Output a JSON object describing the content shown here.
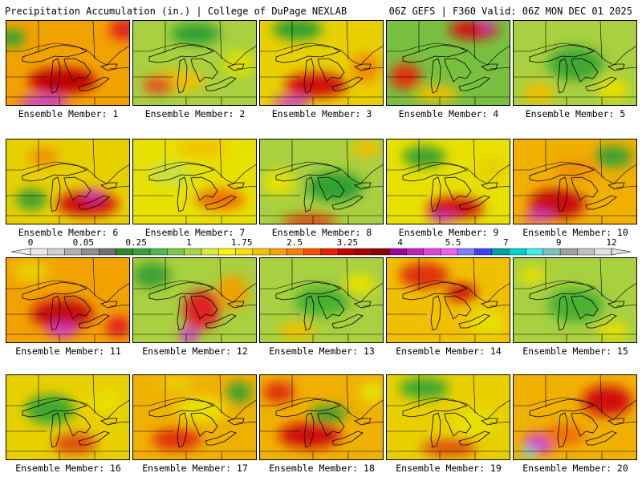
{
  "header": {
    "left": "Precipitation Accumulation (in.) | College of DuPage NEXLAB",
    "right": "06Z GEFS | F360 Valid: 06Z MON DEC 01 2025"
  },
  "caption_prefix": "Ensemble Member: ",
  "members": [
    {
      "id": "1",
      "base": "#f2a200",
      "blobs": [
        [
          0.45,
          0.7,
          0.55,
          0.3,
          "#c00000"
        ],
        [
          0.3,
          0.95,
          0.4,
          0.18,
          "#d040d0"
        ],
        [
          0.05,
          0.2,
          0.2,
          0.2,
          "#30a030"
        ],
        [
          0.95,
          0.1,
          0.25,
          0.25,
          "#e02020"
        ]
      ]
    },
    {
      "id": "2",
      "base": "#a8d040",
      "blobs": [
        [
          0.5,
          0.15,
          0.4,
          0.25,
          "#30a030"
        ],
        [
          0.35,
          0.7,
          0.45,
          0.25,
          "#f0c000"
        ],
        [
          0.2,
          0.75,
          0.25,
          0.2,
          "#e05020"
        ],
        [
          0.85,
          0.5,
          0.25,
          0.3,
          "#e0e000"
        ]
      ]
    },
    {
      "id": "3",
      "base": "#e8d000",
      "blobs": [
        [
          0.3,
          0.1,
          0.4,
          0.25,
          "#30a030"
        ],
        [
          0.45,
          0.75,
          0.5,
          0.28,
          "#d01010"
        ],
        [
          0.25,
          0.95,
          0.3,
          0.15,
          "#d040d0"
        ],
        [
          0.85,
          0.55,
          0.25,
          0.35,
          "#f09000"
        ]
      ]
    },
    {
      "id": "4",
      "base": "#7ac040",
      "blobs": [
        [
          0.7,
          0.1,
          0.4,
          0.22,
          "#d01010"
        ],
        [
          0.15,
          0.65,
          0.25,
          0.3,
          "#e03010"
        ],
        [
          0.4,
          0.85,
          0.35,
          0.2,
          "#f0c000"
        ],
        [
          0.8,
          0.05,
          0.1,
          0.12,
          "#d040d0"
        ]
      ]
    },
    {
      "id": "5",
      "base": "#a8d040",
      "blobs": [
        [
          0.5,
          0.5,
          0.45,
          0.4,
          "#40a830"
        ],
        [
          0.8,
          0.8,
          0.25,
          0.25,
          "#e8e000"
        ],
        [
          0.2,
          0.85,
          0.25,
          0.25,
          "#f0c000"
        ]
      ]
    },
    {
      "id": "6",
      "base": "#e8d000",
      "blobs": [
        [
          0.65,
          0.75,
          0.5,
          0.28,
          "#d01010"
        ],
        [
          0.7,
          0.65,
          0.15,
          0.15,
          "#c030c0"
        ],
        [
          0.2,
          0.7,
          0.25,
          0.25,
          "#40a030"
        ],
        [
          0.3,
          0.2,
          0.25,
          0.2,
          "#f09000"
        ]
      ]
    },
    {
      "id": "7",
      "base": "#e8e000",
      "blobs": [
        [
          0.7,
          0.7,
          0.4,
          0.25,
          "#f07000"
        ],
        [
          0.3,
          0.4,
          0.35,
          0.3,
          "#c8e040"
        ],
        [
          0.55,
          0.1,
          0.4,
          0.2,
          "#f0c000"
        ]
      ]
    },
    {
      "id": "8",
      "base": "#a8d040",
      "blobs": [
        [
          0.6,
          0.55,
          0.45,
          0.35,
          "#30a030"
        ],
        [
          0.4,
          0.95,
          0.45,
          0.15,
          "#e04010"
        ],
        [
          0.15,
          0.5,
          0.25,
          0.3,
          "#e8e000"
        ],
        [
          0.85,
          0.1,
          0.25,
          0.2,
          "#f0c000"
        ]
      ]
    },
    {
      "id": "9",
      "base": "#e8e000",
      "blobs": [
        [
          0.55,
          0.8,
          0.45,
          0.25,
          "#d01010"
        ],
        [
          0.45,
          0.92,
          0.25,
          0.1,
          "#d040d0"
        ],
        [
          0.3,
          0.2,
          0.35,
          0.25,
          "#40a030"
        ],
        [
          0.85,
          0.35,
          0.25,
          0.3,
          "#e8d000"
        ]
      ]
    },
    {
      "id": "10",
      "base": "#f0b000",
      "blobs": [
        [
          0.35,
          0.75,
          0.45,
          0.35,
          "#c81010"
        ],
        [
          0.2,
          0.9,
          0.25,
          0.12,
          "#d040d0"
        ],
        [
          0.8,
          0.2,
          0.3,
          0.25,
          "#40a030"
        ],
        [
          0.5,
          0.35,
          0.35,
          0.25,
          "#f09000"
        ]
      ]
    },
    {
      "id": "11",
      "base": "#f2a200",
      "blobs": [
        [
          0.45,
          0.65,
          0.5,
          0.35,
          "#c81010"
        ],
        [
          0.45,
          0.85,
          0.25,
          0.15,
          "#d040d0"
        ],
        [
          0.2,
          0.15,
          0.3,
          0.25,
          "#e8d000"
        ],
        [
          0.9,
          0.8,
          0.2,
          0.25,
          "#e02020"
        ]
      ]
    },
    {
      "id": "12",
      "base": "#a8d040",
      "blobs": [
        [
          0.55,
          0.6,
          0.3,
          0.45,
          "#e02020"
        ],
        [
          0.45,
          0.9,
          0.15,
          0.2,
          "#d040d0"
        ],
        [
          0.15,
          0.2,
          0.3,
          0.3,
          "#40a030"
        ],
        [
          0.8,
          0.4,
          0.25,
          0.4,
          "#f0a000"
        ]
      ]
    },
    {
      "id": "13",
      "base": "#a8d040",
      "blobs": [
        [
          0.5,
          0.5,
          0.45,
          0.35,
          "#48b030"
        ],
        [
          0.8,
          0.3,
          0.25,
          0.25,
          "#e8e000"
        ],
        [
          0.3,
          0.85,
          0.3,
          0.2,
          "#f0c000"
        ]
      ]
    },
    {
      "id": "14",
      "base": "#f0c000",
      "blobs": [
        [
          0.3,
          0.2,
          0.4,
          0.3,
          "#e03010"
        ],
        [
          0.6,
          0.4,
          0.25,
          0.2,
          "#d01010"
        ],
        [
          0.8,
          0.75,
          0.3,
          0.3,
          "#e8e000"
        ]
      ]
    },
    {
      "id": "15",
      "base": "#a8d040",
      "blobs": [
        [
          0.5,
          0.55,
          0.45,
          0.4,
          "#48b030"
        ],
        [
          0.8,
          0.85,
          0.25,
          0.2,
          "#e8e000"
        ],
        [
          0.15,
          0.2,
          0.2,
          0.2,
          "#e8e000"
        ]
      ]
    },
    {
      "id": "16",
      "base": "#e8d000",
      "blobs": [
        [
          0.35,
          0.4,
          0.4,
          0.35,
          "#40a830"
        ],
        [
          0.55,
          0.8,
          0.35,
          0.25,
          "#e05010"
        ],
        [
          0.8,
          0.3,
          0.25,
          0.25,
          "#e8e000"
        ]
      ]
    },
    {
      "id": "17",
      "base": "#f0b000",
      "blobs": [
        [
          0.55,
          0.4,
          0.4,
          0.3,
          "#e8e000"
        ],
        [
          0.35,
          0.75,
          0.4,
          0.25,
          "#e03010"
        ],
        [
          0.85,
          0.2,
          0.2,
          0.25,
          "#40a030"
        ],
        [
          0.35,
          0.1,
          0.25,
          0.2,
          "#e8d000"
        ]
      ]
    },
    {
      "id": "18",
      "base": "#f0b000",
      "blobs": [
        [
          0.4,
          0.7,
          0.5,
          0.3,
          "#d01010"
        ],
        [
          0.55,
          0.45,
          0.3,
          0.2,
          "#40a030"
        ],
        [
          0.15,
          0.2,
          0.25,
          0.25,
          "#e03010"
        ],
        [
          0.9,
          0.2,
          0.2,
          0.25,
          "#e8e000"
        ]
      ]
    },
    {
      "id": "19",
      "base": "#e8d000",
      "blobs": [
        [
          0.3,
          0.15,
          0.4,
          0.25,
          "#40a830"
        ],
        [
          0.7,
          0.55,
          0.35,
          0.3,
          "#e8e000"
        ],
        [
          0.5,
          0.85,
          0.45,
          0.2,
          "#e05010"
        ]
      ]
    },
    {
      "id": "20",
      "base": "#f0b000",
      "blobs": [
        [
          0.75,
          0.3,
          0.4,
          0.35,
          "#d01010"
        ],
        [
          0.2,
          0.8,
          0.25,
          0.25,
          "#d040d0"
        ],
        [
          0.12,
          0.9,
          0.12,
          0.12,
          "#40e0e0"
        ],
        [
          0.4,
          0.7,
          0.35,
          0.25,
          "#f07000"
        ]
      ]
    }
  ],
  "colorbar": {
    "labels": [
      "0",
      "0.05",
      "0.25",
      "1",
      "1.75",
      "2.5",
      "3.25",
      "4",
      "5.5",
      "7",
      "9",
      "12"
    ],
    "colors": [
      "#e8e8e8",
      "#d0d0d0",
      "#b0b0b0",
      "#909090",
      "#707070",
      "#2a8a2a",
      "#38a038",
      "#4fb84f",
      "#78c850",
      "#a8d840",
      "#d8e840",
      "#f8f800",
      "#f8e000",
      "#f8c000",
      "#f8a000",
      "#f88000",
      "#f85000",
      "#e82000",
      "#c80000",
      "#a80000",
      "#880000",
      "#a000a0",
      "#c020c0",
      "#e040e0",
      "#f060f0",
      "#8080ff",
      "#4040ff",
      "#00a0a0",
      "#00d0d0",
      "#40f0f0",
      "#80c0c0",
      "#a0a0a0",
      "#c0c0c0",
      "#e0e0e0"
    ]
  }
}
